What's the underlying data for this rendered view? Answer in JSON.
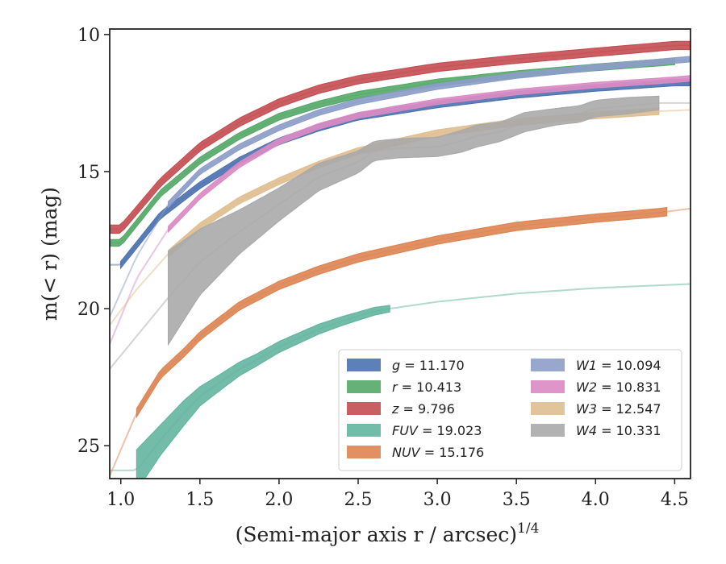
{
  "chart_data": {
    "type": "line",
    "xlabel": "(Semi-major axis r / arcsec)",
    "xlabel_exponent": "1/4",
    "ylabel": "m(< r) (mag)",
    "xlim": [
      0.93,
      4.6
    ],
    "ylim": [
      26.2,
      9.8
    ],
    "y_inverted": true,
    "grid": false,
    "legend_position": "lower-right",
    "x_ticks": [
      {
        "value": 1.0,
        "label": "1.0"
      },
      {
        "value": 1.5,
        "label": "1.5"
      },
      {
        "value": 2.0,
        "label": "2.0"
      },
      {
        "value": 2.5,
        "label": "2.5"
      },
      {
        "value": 3.0,
        "label": "3.0"
      },
      {
        "value": 3.5,
        "label": "3.5"
      },
      {
        "value": 4.0,
        "label": "4.0"
      },
      {
        "value": 4.5,
        "label": "4.5"
      }
    ],
    "y_ticks": [
      {
        "value": 10,
        "label": "10"
      },
      {
        "value": 15,
        "label": "15"
      },
      {
        "value": 20,
        "label": "20"
      },
      {
        "value": 25,
        "label": "25"
      }
    ],
    "series": [
      {
        "name": "g",
        "total": "11.170",
        "color": "#4c72b0",
        "mag_total": 11.17,
        "x": [
          1.0,
          1.25,
          1.5,
          1.75,
          2.0,
          2.25,
          2.5,
          3.0,
          3.5,
          4.0,
          4.5
        ],
        "y": [
          18.4,
          16.6,
          15.5,
          14.6,
          13.9,
          13.4,
          13.0,
          12.55,
          12.2,
          11.95,
          11.75
        ],
        "band": 0.12,
        "solid_range": [
          1.0,
          4.6
        ],
        "faint_start": 0.93
      },
      {
        "name": "r",
        "total": "10.413",
        "color": "#55a868",
        "mag_total": 10.413,
        "x": [
          1.0,
          1.25,
          1.5,
          1.75,
          2.0,
          2.25,
          2.5,
          3.0,
          3.5,
          4.0,
          4.5
        ],
        "y": [
          17.6,
          15.8,
          14.6,
          13.7,
          13.0,
          12.55,
          12.2,
          11.75,
          11.45,
          11.2,
          10.98
        ],
        "band": 0.12,
        "solid_range": [
          0.93,
          4.5
        ],
        "faint_start": 0.93
      },
      {
        "name": "z",
        "total": "9.796",
        "color": "#c44e52",
        "mag_total": 9.796,
        "x": [
          1.0,
          1.25,
          1.5,
          1.75,
          2.0,
          2.25,
          2.5,
          3.0,
          3.5,
          4.0,
          4.5
        ],
        "y": [
          17.1,
          15.4,
          14.1,
          13.2,
          12.5,
          12.0,
          11.65,
          11.2,
          10.9,
          10.65,
          10.4
        ],
        "band": 0.15,
        "solid_range": [
          0.93,
          4.6
        ],
        "faint_start": 0.93
      },
      {
        "name": "FUV",
        "total": "19.023",
        "color": "#64b5a0",
        "mag_total": 19.023,
        "x": [
          1.1,
          1.25,
          1.4,
          1.5,
          1.6,
          1.75,
          1.85,
          2.0,
          2.25,
          2.4,
          2.6,
          2.7,
          3.0,
          3.5,
          4.0,
          4.6
        ],
        "y": [
          25.9,
          24.8,
          23.8,
          23.2,
          22.8,
          22.2,
          21.9,
          21.4,
          20.75,
          20.45,
          20.1,
          20.0,
          19.75,
          19.45,
          19.25,
          19.1
        ],
        "band_solid": [
          0.75,
          0.55,
          0.45,
          0.35,
          0.3,
          0.25,
          0.22,
          0.2,
          0.18,
          0.16,
          0.14,
          0.12
        ],
        "solid_range": [
          1.1,
          2.7
        ],
        "faint_start": 0.93
      },
      {
        "name": "NUV",
        "total": "15.176",
        "color": "#dd8452",
        "mag_total": 15.176,
        "x": [
          0.93,
          1.1,
          1.25,
          1.4,
          1.5,
          1.75,
          2.0,
          2.25,
          2.5,
          3.0,
          3.5,
          4.0,
          4.4,
          4.6
        ],
        "y": [
          26.1,
          23.8,
          22.4,
          21.6,
          21.0,
          19.9,
          19.15,
          18.6,
          18.15,
          17.5,
          17.0,
          16.7,
          16.5,
          16.35
        ],
        "band": 0.15,
        "solid_range": [
          1.1,
          4.45
        ],
        "faint_start": 0.93
      },
      {
        "name": "W1",
        "total": "10.094",
        "color": "#8c9dc8",
        "mag_total": 10.094,
        "x": [
          0.93,
          1.1,
          1.3,
          1.5,
          1.75,
          2.0,
          2.25,
          2.5,
          3.0,
          3.5,
          4.0,
          4.5,
          4.6
        ],
        "y": [
          20.3,
          18.1,
          16.2,
          15.0,
          14.1,
          13.4,
          12.85,
          12.45,
          11.9,
          11.5,
          11.2,
          10.95,
          10.9
        ],
        "band": 0.1,
        "solid_range": [
          1.3,
          4.6
        ],
        "faint_start": 0.93
      },
      {
        "name": "W2",
        "total": "10.831",
        "color": "#da8bc3",
        "mag_total": 10.831,
        "x": [
          0.93,
          1.1,
          1.3,
          1.5,
          1.75,
          2.0,
          2.25,
          2.5,
          3.0,
          3.5,
          4.0,
          4.5,
          4.6
        ],
        "y": [
          21.3,
          18.9,
          17.1,
          15.9,
          14.75,
          13.9,
          13.35,
          12.95,
          12.45,
          12.1,
          11.85,
          11.65,
          11.6
        ],
        "band": 0.1,
        "solid_range": [
          1.3,
          4.6
        ],
        "faint_start": 0.93
      },
      {
        "name": "W3",
        "total": "12.547",
        "color": "#dfbe8f",
        "mag_total": 12.547,
        "x": [
          0.93,
          1.1,
          1.3,
          1.5,
          1.75,
          2.0,
          2.25,
          2.5,
          3.0,
          3.5,
          4.0,
          4.4,
          4.6
        ],
        "y": [
          20.6,
          19.3,
          18.0,
          17.0,
          16.05,
          15.35,
          14.75,
          14.25,
          13.6,
          13.2,
          12.95,
          12.8,
          12.75
        ],
        "band": 0.12,
        "solid_range": [
          1.3,
          4.4
        ],
        "faint_start": 0.93
      },
      {
        "name": "W4",
        "total": "10.331",
        "color": "#aaaaaa",
        "mag_total": 10.331,
        "x": [
          1.3,
          1.5,
          1.75,
          2.0,
          2.25,
          2.5,
          2.6,
          2.75,
          3.0,
          3.15,
          3.25,
          3.4,
          3.55,
          3.75,
          3.9,
          4.0,
          4.2,
          4.4
        ],
        "y": [
          19.6,
          18.3,
          17.2,
          16.2,
          15.2,
          14.65,
          14.25,
          14.15,
          14.1,
          13.9,
          13.7,
          13.55,
          13.2,
          13.0,
          12.9,
          12.7,
          12.6,
          12.5
        ],
        "band_solid": [
          1.7,
          1.2,
          0.8,
          0.6,
          0.5,
          0.4,
          0.35,
          0.35,
          0.35,
          0.4,
          0.4,
          0.35,
          0.35,
          0.3,
          0.3,
          0.3,
          0.3,
          0.25
        ],
        "solid_range": [
          1.3,
          4.4
        ],
        "faint_start": 0.93,
        "faint_y0": 22.2
      }
    ],
    "legend": [
      {
        "symbol": "g",
        "total": "11.170",
        "color": "#4c72b0"
      },
      {
        "symbol": "r",
        "total": "10.413",
        "color": "#55a868"
      },
      {
        "symbol": "z",
        "total": "9.796",
        "color": "#c44e52"
      },
      {
        "symbol": "FUV",
        "total": "19.023",
        "color": "#64b5a0"
      },
      {
        "symbol": "NUV",
        "total": "15.176",
        "color": "#dd8452"
      },
      {
        "symbol": "W1",
        "total": "10.094",
        "color": "#8c9dc8"
      },
      {
        "symbol": "W2",
        "total": "10.831",
        "color": "#da8bc3"
      },
      {
        "symbol": "W3",
        "total": "12.547",
        "color": "#dfbe8f"
      },
      {
        "symbol": "W4",
        "total": "10.331",
        "color": "#aaaaaa"
      }
    ]
  }
}
